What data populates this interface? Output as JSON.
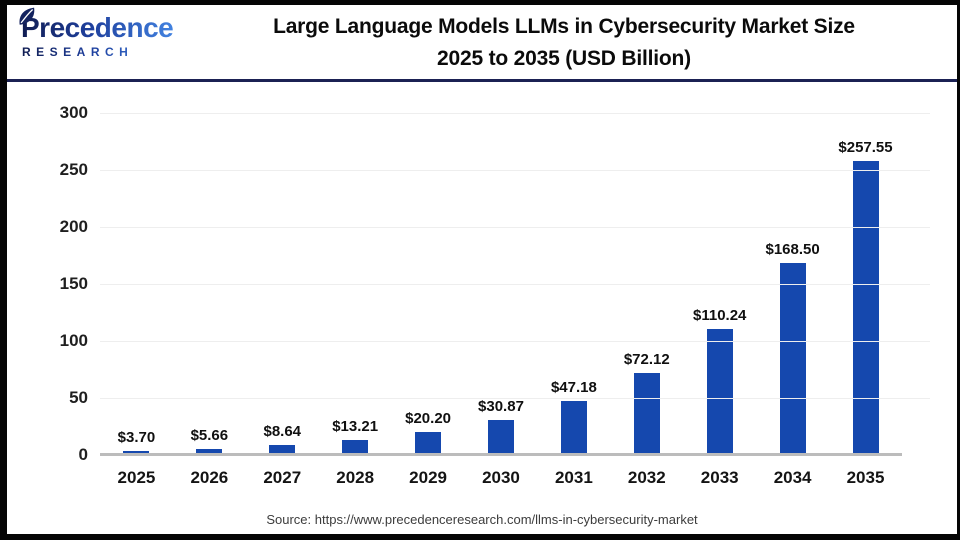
{
  "header": {
    "logo": {
      "brand": "Precedence",
      "sub": "RESEARCH"
    },
    "title_line1": "Large Language Models LLMs in Cybersecurity Market Size",
    "title_line2": "2025 to 2035 (USD Billion)"
  },
  "chart_data": {
    "type": "bar",
    "title": "Large Language Models LLMs in Cybersecurity Market Size 2025 to 2035 (USD Billion)",
    "categories": [
      "2025",
      "2026",
      "2027",
      "2028",
      "2029",
      "2030",
      "2031",
      "2032",
      "2033",
      "2034",
      "2035"
    ],
    "values": [
      3.7,
      5.66,
      8.64,
      13.21,
      20.2,
      30.87,
      47.18,
      72.12,
      110.24,
      168.5,
      257.55
    ],
    "value_labels": [
      "$3.70",
      "$5.66",
      "$8.64",
      "$13.21",
      "$20.20",
      "$30.87",
      "$47.18",
      "$72.12",
      "$110.24",
      "$168.50",
      "$257.55"
    ],
    "xlabel": "",
    "ylabel": "",
    "ylim": [
      0,
      300
    ],
    "yticks": [
      0,
      50,
      100,
      150,
      200,
      250,
      300
    ],
    "grid": true,
    "legend": "none",
    "bar_color": "#1548ae"
  },
  "source": {
    "text": "Source: https://www.precedenceresearch.com/llms-in-cybersecurity-market"
  },
  "colors": {
    "bar": "#1548ae",
    "divider_navy": "#1b2153",
    "frame_border": "#050505",
    "logo_dark": "#101b4e",
    "logo_light": "#4486e4",
    "gridline": "#eeeeee",
    "axis_line": "#bcbcbc"
  }
}
